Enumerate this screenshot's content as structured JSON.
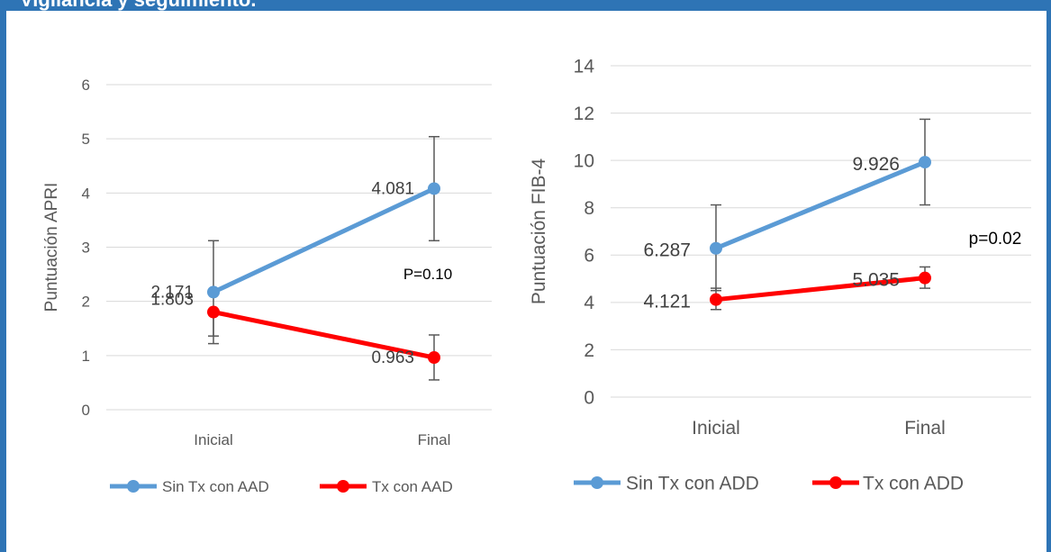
{
  "header": {
    "title": "Vigilancia y seguimiento."
  },
  "colors": {
    "series_a": "#5b9bd5",
    "series_b": "#ff0000",
    "grid": "#d9d9d9",
    "text": "#595959",
    "border": "#2e74b5"
  },
  "chart_data": [
    {
      "type": "line",
      "categories": [
        "Inicial",
        "Final"
      ],
      "ylabel": "Puntuación APRI",
      "ylim": [
        0,
        6
      ],
      "yticks": [
        "0",
        "1",
        "2",
        "3",
        "4",
        "5",
        "6"
      ],
      "grid": true,
      "legend": "bottom",
      "annotation": "P=0.10",
      "series": [
        {
          "name": "Sin Tx con AAD",
          "values": [
            2.171,
            4.081
          ],
          "labels": [
            "2.171",
            "4.081"
          ],
          "error_low": [
            1.22,
            3.12
          ],
          "error_high": [
            3.12,
            5.04
          ]
        },
        {
          "name": "Tx con AAD",
          "values": [
            1.803,
            0.963
          ],
          "labels": [
            "1.803",
            "0.963"
          ],
          "error_low": [
            1.36,
            0.55
          ],
          "error_high": [
            1.8,
            1.38
          ]
        }
      ]
    },
    {
      "type": "line",
      "categories": [
        "Inicial",
        "Final"
      ],
      "ylabel": "Puntuación FIB-4",
      "ylim": [
        0,
        14
      ],
      "yticks": [
        "0",
        "2",
        "4",
        "6",
        "8",
        "10",
        "12",
        "14"
      ],
      "grid": true,
      "legend": "bottom",
      "annotation": "p=0.02",
      "series": [
        {
          "name": "Sin Tx con ADD",
          "values": [
            6.287,
            9.926
          ],
          "labels": [
            "6.287",
            "9.926"
          ],
          "error_low": [
            4.5,
            8.12
          ],
          "error_high": [
            8.12,
            11.74
          ]
        },
        {
          "name": "Tx con ADD",
          "values": [
            4.121,
            5.035
          ],
          "labels": [
            "4.121",
            "5.035"
          ],
          "error_low": [
            3.7,
            4.6
          ],
          "error_high": [
            4.6,
            5.5
          ]
        }
      ]
    }
  ]
}
